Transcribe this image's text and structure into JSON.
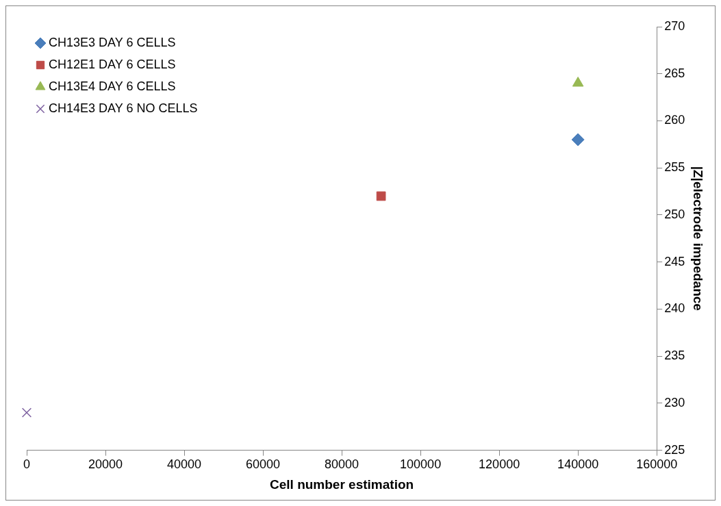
{
  "chart_data": {
    "type": "scatter",
    "xlabel": "Cell number estimation",
    "ylabel": "|Z|electrode impedance",
    "xlim": [
      0,
      160000
    ],
    "xticks": [
      0,
      20000,
      40000,
      60000,
      80000,
      100000,
      120000,
      140000,
      160000
    ],
    "ylim": [
      225,
      270
    ],
    "yticks": [
      225,
      230,
      235,
      240,
      245,
      250,
      255,
      260,
      265,
      270
    ],
    "grid": false,
    "legend": "top left",
    "series": [
      {
        "name": "CH13E3 DAY 6 CELLS",
        "color": "#4a7ebb",
        "marker": "diamond",
        "x": [
          140000
        ],
        "values": [
          258
        ]
      },
      {
        "name": "CH12E1 DAY 6 CELLS",
        "color": "#be4b48",
        "marker": "square",
        "x": [
          90000
        ],
        "values": [
          252
        ]
      },
      {
        "name": "CH13E4 DAY 6 CELLS",
        "color": "#98b954",
        "marker": "triangle",
        "x": [
          140000
        ],
        "values": [
          264
        ]
      },
      {
        "name": "CH14E3 DAY 6 NO CELLS",
        "color": "#7d60a0",
        "marker": "cross",
        "x": [
          0
        ],
        "values": [
          229
        ]
      }
    ]
  }
}
